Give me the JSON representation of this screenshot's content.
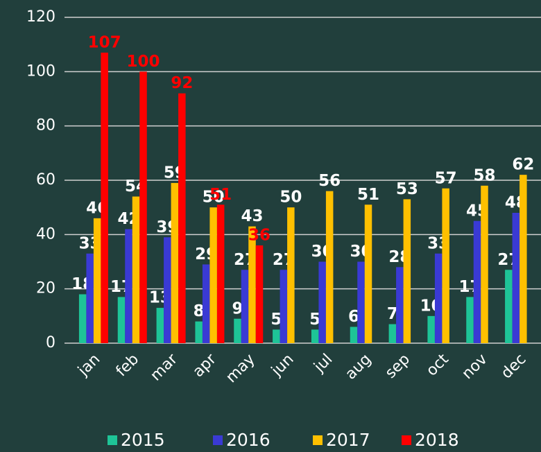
{
  "chart_data": {
    "type": "bar",
    "categories": [
      "jan",
      "feb",
      "mar",
      "apr",
      "may",
      "jun",
      "jul",
      "aug",
      "sep",
      "oct",
      "nov",
      "dec"
    ],
    "series": [
      {
        "name": "2015",
        "color": "#1ec497",
        "label_color": "#ffffff",
        "values": [
          18,
          17,
          13,
          8,
          9,
          5,
          5,
          6,
          7,
          10,
          17,
          27
        ]
      },
      {
        "name": "2016",
        "color": "#3a3ad4",
        "label_color": "#ffffff",
        "values": [
          33,
          42,
          39,
          29,
          27,
          27,
          30,
          30,
          28,
          33,
          45,
          48
        ]
      },
      {
        "name": "2017",
        "color": "#ffc000",
        "label_color": "#ffffff",
        "values": [
          46,
          54,
          59,
          50,
          43,
          50,
          56,
          51,
          53,
          57,
          58,
          62
        ]
      },
      {
        "name": "2018",
        "color": "#ff0000",
        "label_color": "#ff0000",
        "values": [
          107,
          100,
          92,
          51,
          36,
          null,
          null,
          null,
          null,
          null,
          null,
          null
        ]
      }
    ],
    "ylim": [
      0,
      120
    ],
    "yticks": [
      0,
      20,
      40,
      60,
      80,
      100,
      120
    ],
    "grid": true,
    "legend": "bottom"
  }
}
